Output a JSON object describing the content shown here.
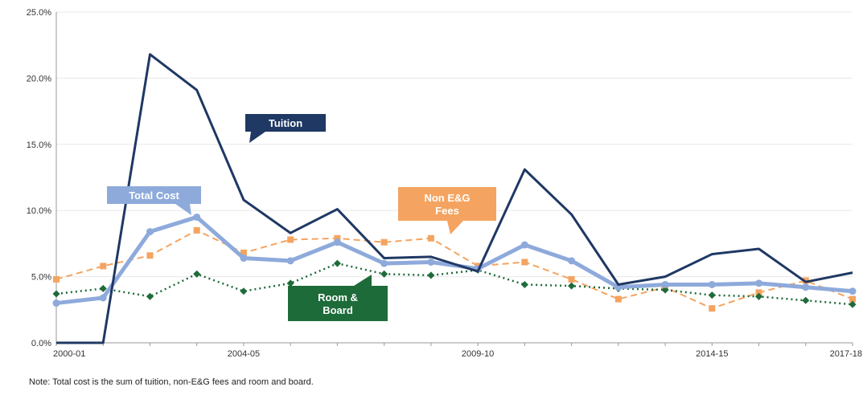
{
  "chart_data": {
    "type": "line",
    "x": [
      "2000-01",
      "2001-02",
      "2002-03",
      "2003-04",
      "2004-05",
      "2005-06",
      "2006-07",
      "2007-08",
      "2008-09",
      "2009-10",
      "2010-11",
      "2011-12",
      "2012-13",
      "2013-14",
      "2014-15",
      "2015-16",
      "2016-17",
      "2017-18"
    ],
    "x_tick_labels": [
      "2000-01",
      "2004-05",
      "2009-10",
      "2014-15",
      "2017-18"
    ],
    "y_tick_labels": [
      "0.0%",
      "5.0%",
      "10.0%",
      "15.0%",
      "20.0%",
      "25.0%"
    ],
    "ylim": [
      0,
      25
    ],
    "grid": true,
    "series": [
      {
        "name": "Tuition",
        "color": "#1f3864",
        "style": "solid-thick",
        "values": [
          0.0,
          0.0,
          21.8,
          19.1,
          10.8,
          8.3,
          10.1,
          6.4,
          6.5,
          5.4,
          13.1,
          9.7,
          4.4,
          5.0,
          6.7,
          7.1,
          4.6,
          5.3
        ]
      },
      {
        "name": "Total Cost",
        "color": "#8eaadb",
        "style": "solid-heavy",
        "values": [
          3.0,
          3.4,
          8.4,
          9.5,
          6.4,
          6.2,
          7.6,
          6.0,
          6.1,
          5.6,
          7.4,
          6.2,
          4.2,
          4.4,
          4.4,
          4.5,
          4.2,
          3.9
        ]
      },
      {
        "name": "Non E&G Fees",
        "color": "#f4a460",
        "style": "dashed",
        "values": [
          4.8,
          5.8,
          6.6,
          8.5,
          6.8,
          7.8,
          7.9,
          7.6,
          7.9,
          5.8,
          6.1,
          4.8,
          3.3,
          4.2,
          2.6,
          3.8,
          4.7,
          3.3
        ]
      },
      {
        "name": "Room & Board",
        "color": "#1e6b3a",
        "style": "dotted",
        "values": [
          3.7,
          4.1,
          3.5,
          5.2,
          3.9,
          4.5,
          6.0,
          5.2,
          5.1,
          5.5,
          4.4,
          4.3,
          4.1,
          4.0,
          3.6,
          3.5,
          3.2,
          2.9
        ]
      }
    ],
    "callouts": [
      {
        "label": "Tuition",
        "fill": "#1f3864"
      },
      {
        "label": "Total Cost",
        "fill": "#8eaadb"
      },
      {
        "label_lines": [
          "Non E&G",
          "Fees"
        ],
        "fill": "#f4a460"
      },
      {
        "label_lines": [
          "Room &",
          "Board"
        ],
        "fill": "#1e6b3a"
      }
    ]
  },
  "note": "Note: Total cost is the sum of tuition, non-E&G fees and room and board."
}
